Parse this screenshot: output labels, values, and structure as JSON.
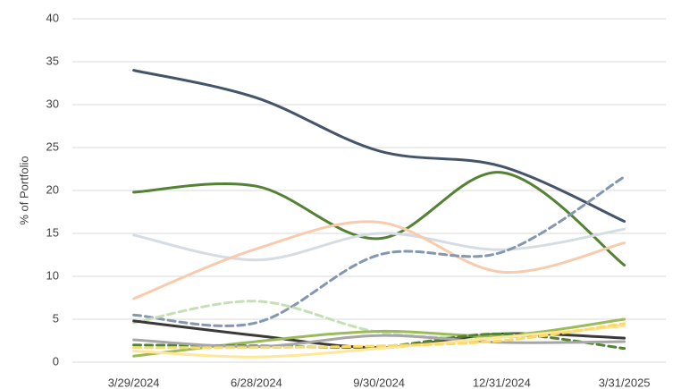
{
  "chart_data": {
    "type": "line",
    "y_label": "% of Portfolio",
    "categories": [
      "3/29/2024",
      "6/28/2024",
      "9/30/2024",
      "12/31/2024",
      "3/31/2025"
    ],
    "ylim": [
      0,
      40
    ],
    "yticks": [
      0,
      5,
      10,
      15,
      20,
      25,
      30,
      35,
      40
    ],
    "grid": true,
    "smooth": true,
    "series": [
      {
        "color": "#44546a",
        "dashed": false,
        "values": [
          34,
          30.8,
          24.6,
          22.8,
          16.4
        ]
      },
      {
        "color": "#548235",
        "dashed": false,
        "values": [
          19.8,
          20.5,
          14.4,
          22.1,
          11.3
        ]
      },
      {
        "color": "#d6dce4",
        "dashed": false,
        "values": [
          14.8,
          11.9,
          15,
          13.1,
          15.5
        ]
      },
      {
        "color": "#f8cbad",
        "dashed": false,
        "values": [
          7.4,
          13.2,
          16.3,
          10.5,
          13.9
        ]
      },
      {
        "color": "#8497b0",
        "dashed": true,
        "values": [
          5.5,
          4.6,
          12.5,
          12.8,
          21.6
        ]
      },
      {
        "color": "#c5e0b4",
        "dashed": true,
        "values": [
          4.6,
          7.1,
          3.5,
          2.9,
          4.3
        ]
      },
      {
        "color": "#3b3838",
        "dashed": false,
        "values": [
          4.8,
          3.1,
          1.7,
          3.3,
          2.8
        ]
      },
      {
        "color": "#9bbb59",
        "dashed": false,
        "values": [
          0.7,
          2.4,
          3.6,
          3.1,
          5.0
        ]
      },
      {
        "color": "#548235",
        "dashed": true,
        "values": [
          2.0,
          1.9,
          1.8,
          3.3,
          1.6
        ]
      },
      {
        "color": "#a6a6a6",
        "dashed": false,
        "values": [
          2.6,
          1.8,
          3.1,
          2.3,
          2.4
        ]
      },
      {
        "color": "#ffe699",
        "dashed": false,
        "values": [
          1.3,
          0.6,
          1.6,
          2.9,
          4.2
        ]
      },
      {
        "color": "#ffd966",
        "dashed": true,
        "values": [
          1.7,
          1.7,
          1.9,
          2.5,
          4.5
        ]
      }
    ]
  }
}
